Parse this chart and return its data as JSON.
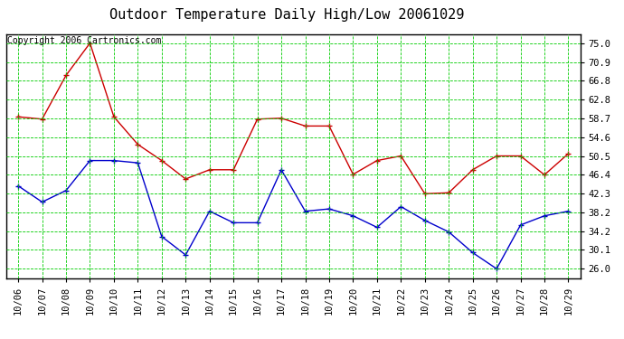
{
  "title": "Outdoor Temperature Daily High/Low 20061029",
  "copyright": "Copyright 2006 Cartronics.com",
  "dates": [
    "10/06",
    "10/07",
    "10/08",
    "10/09",
    "10/10",
    "10/11",
    "10/12",
    "10/13",
    "10/14",
    "10/15",
    "10/16",
    "10/17",
    "10/18",
    "10/19",
    "10/20",
    "10/21",
    "10/22",
    "10/23",
    "10/24",
    "10/25",
    "10/26",
    "10/27",
    "10/28",
    "10/29"
  ],
  "high_temps": [
    59.0,
    58.5,
    68.0,
    75.0,
    59.0,
    53.0,
    49.5,
    45.5,
    47.5,
    47.5,
    58.5,
    58.7,
    57.0,
    57.0,
    46.5,
    49.5,
    50.5,
    42.3,
    42.5,
    47.5,
    50.5,
    50.5,
    46.4,
    51.0
  ],
  "low_temps": [
    44.0,
    40.5,
    43.0,
    49.5,
    49.5,
    49.0,
    33.0,
    29.0,
    38.5,
    36.0,
    36.0,
    47.5,
    38.5,
    39.0,
    37.5,
    35.0,
    39.5,
    36.5,
    34.0,
    29.5,
    26.0,
    35.5,
    37.5,
    38.5
  ],
  "ylim": [
    24.0,
    77.0
  ],
  "yticks": [
    26.0,
    30.1,
    34.2,
    38.2,
    42.3,
    46.4,
    50.5,
    54.6,
    58.7,
    62.8,
    66.8,
    70.9,
    75.0
  ],
  "high_color": "#cc0000",
  "low_color": "#0000cc",
  "grid_color": "#00cc00",
  "bg_color": "#ffffff",
  "plot_bg_color": "#ffffff",
  "title_fontsize": 11,
  "copyright_fontsize": 7,
  "tick_fontsize": 7.5,
  "ytick_fontsize": 7.5
}
